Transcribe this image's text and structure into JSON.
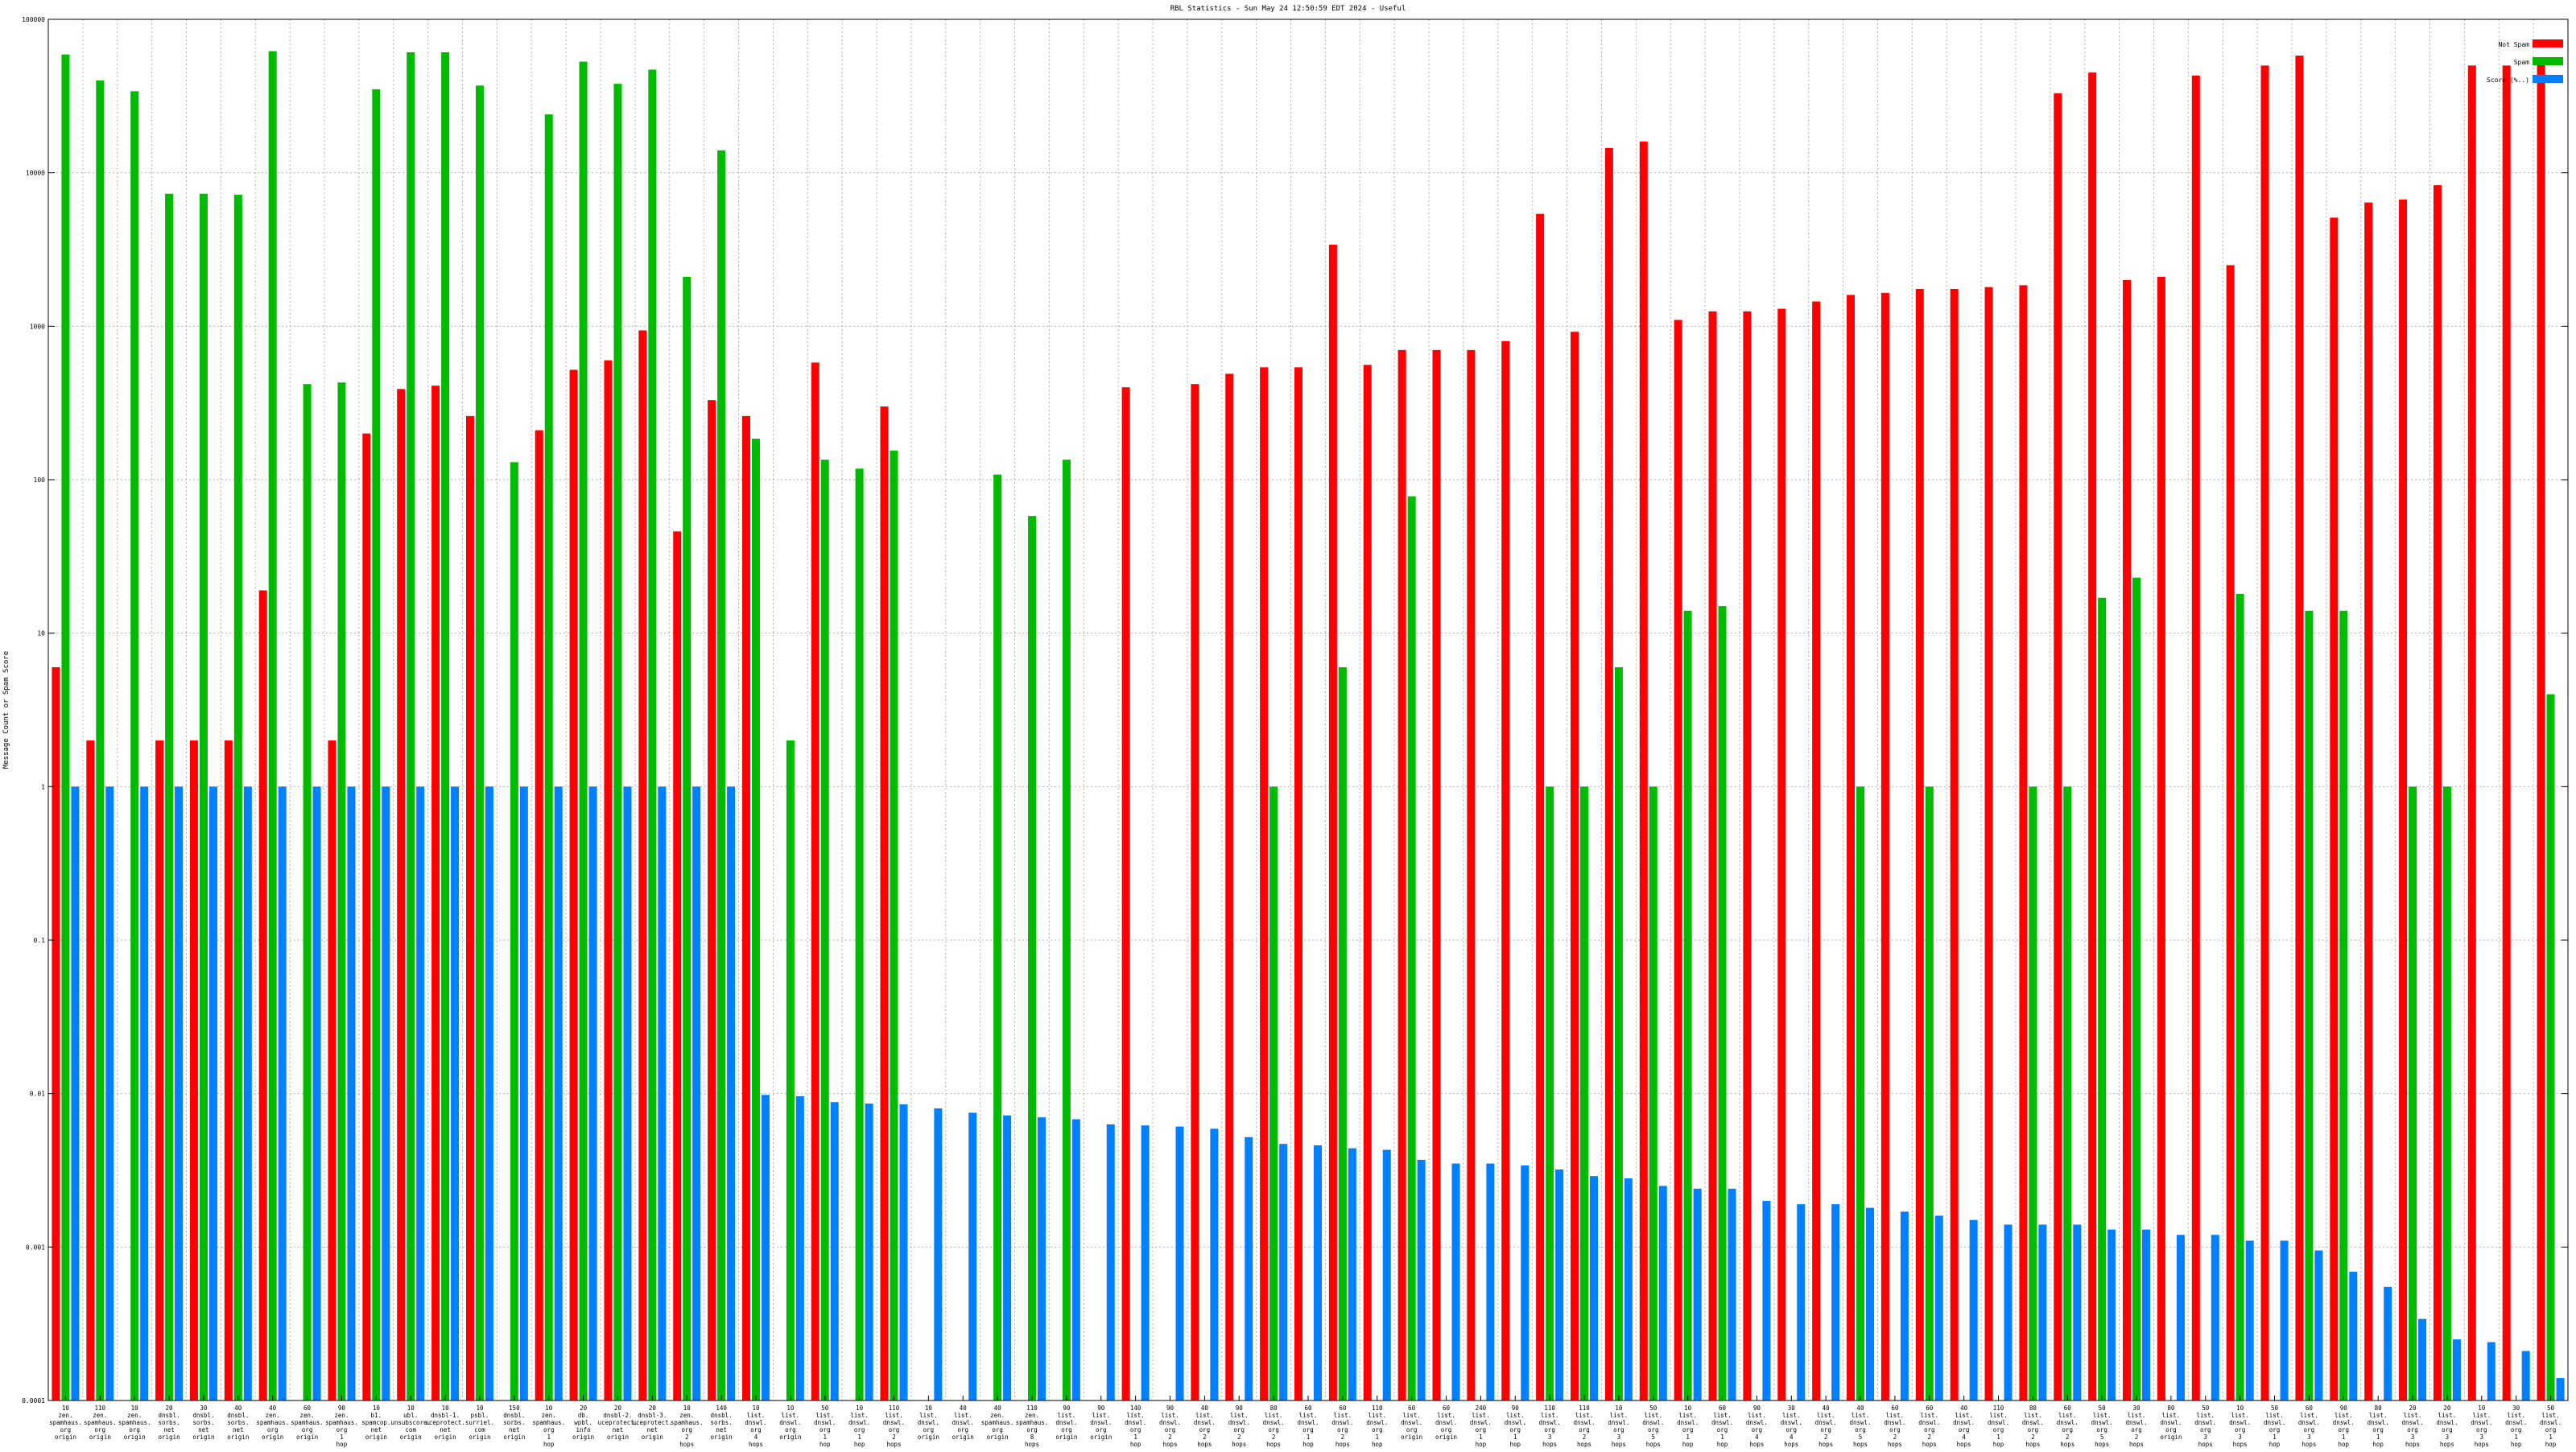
{
  "chart_data": {
    "type": "bar",
    "title": "RBL Statistics - Sun May 24 12:50:59 EDT 2024 - Useful",
    "xlabel": "",
    "ylabel": "Message Count or Spam Score",
    "yscale": "log",
    "ylim": [
      0.0001,
      100000
    ],
    "yticks": [
      "100000",
      "10000",
      "1000",
      "100",
      "10",
      "1",
      "0.1",
      "0.01",
      "0.001",
      "0.0001"
    ],
    "grid": true,
    "legend_position": "top-right",
    "colors": {
      "Not Spam": "#ff0000",
      "Spam": "#00bb00",
      "Score (%..)": "#0080ff"
    },
    "categories": [
      "10 zen. spamhaus. org origin",
      "110 zen. spamhaus. org origin",
      "10 zen. spamhaus. org origin",
      "20 dnsbl. sorbs. net origin",
      "30 dnsbl. sorbs. net origin",
      "40 dnsbl. sorbs. net origin",
      "40 zen. spamhaus. org origin",
      "60 zen. spamhaus. org origin",
      "90 zen. spamhaus. org 1 hop",
      "10 b1. spamcop. net origin",
      "10 ubl. unsubscore. com origin",
      "10 dnsbl-1. uceprotect. net origin",
      "10 psbl. surriel. com origin",
      "150 dnsbl. sorbs. net origin",
      "10 zen. spamhaus. org 1 hop",
      "20 db. wpbl. info origin",
      "20 dnsbl-2. uceprotect. net origin",
      "20 dnsbl-3. uceprotect. net origin",
      "10 zen. spamhaus. org 2 hops",
      "140 dnsbl. sorbs. net origin",
      "10 list. dnswl. org 4 hops",
      "10 list. dnswl. org origin",
      "50 list. dnswl. org 1 hop",
      "10 list. dnswl. org 1 hop",
      "110 list. dnswl. org 2 hops",
      "10 list. dnswl. org origin",
      "40 list. dnswl. org origin",
      "40 zen. spamhaus. org origin",
      "110 zen. spamhaus. org 8 hops",
      "90 list. dnswl. org origin",
      "90 list. dnswl. org origin",
      "140 list. dnswl. org 1 hop",
      "90 list. dnswl. org 2 hops",
      "40 list. dnswl. org 2 hops",
      "90 list. dnswl. org 2 hops",
      "80 list. dnswl. org 2 hops",
      "60 list. dnswl. org 1 hop",
      "60 list. dnswl. org 2 hops",
      "110 list. dnswl. org 1 hop",
      "60 list. dnswl. org origin",
      "60 list. dnswl. org origin",
      "240 list. dnswl. org 1 hop",
      "90 list. dnswl. org 1 hop",
      "110 list. dnswl. org 3 hops",
      "110 list. dnswl. org 2 hops",
      "10 list. dnswl. org 3 hops",
      "50 list. dnswl. org 5 hops",
      "10 list. dnswl. org 1 hop",
      "60 list. dnswl. org 1 hop",
      "90 list. dnswl. org 4 hops",
      "30 list. dnswl. org 4 hops",
      "40 list. dnswl. org 2 hops",
      "40 list. dnswl. org 5 hops",
      "60 list. dnswl. org 2 hops",
      "60 list. dnswl. org 2 hops",
      "40 list. dnswl. org 4 hops",
      "110 list. dnswl. org 1 hop",
      "80 list. dnswl. org 2 hops",
      "60 list. dnswl. org 2 hops",
      "50 list. dnswl. org 5 hops",
      "30 list. dnswl. org 2 hops",
      "80 list. dnswl. org origin",
      "50 list. dnswl. org 3 hops",
      "10 list. dnswl. org 3 hops",
      "50 list. dnswl. org 1 hop",
      "60 list. dnswl. org 3 hops",
      "90 list. dnswl. org 1 hop",
      "80 list. dnswl. org 1 hop",
      "20 list. dnswl. org 3 hops",
      "20 list. dnswl. org 3 hops",
      "10 list. dnswl. org 3 hops",
      "30 list. dnswl. org 1 hop",
      "50 list. dnswl. org 1 hop"
    ],
    "series": [
      {
        "name": "Not Spam",
        "values": [
          6,
          2,
          null,
          2,
          2,
          2,
          19,
          null,
          2,
          200,
          390,
          410,
          260,
          null,
          210,
          520,
          600,
          940,
          46,
          330,
          260,
          null,
          580,
          null,
          300,
          null,
          null,
          null,
          null,
          null,
          null,
          400,
          null,
          420,
          490,
          540,
          540,
          3400,
          560,
          700,
          700,
          700,
          800,
          5400,
          920,
          14500,
          16000,
          1100,
          1250,
          1250,
          1300,
          1450,
          1600,
          1650,
          1750,
          1750,
          1800,
          1850,
          33000,
          45000,
          2000,
          2100,
          43000,
          2500,
          50000,
          58000,
          5100,
          6400,
          6700,
          8300,
          50000,
          50000,
          53000
        ],
        "values_note_removed": true
      },
      {
        "name": "Spam",
        "values": [
          59000,
          40000,
          34000,
          7300,
          7300,
          7200,
          62000,
          420,
          430,
          35000,
          61000,
          61000,
          37000,
          130,
          24000,
          53000,
          38000,
          47000,
          2100,
          14000,
          185,
          2,
          135,
          118,
          155,
          null,
          null,
          108,
          58,
          135,
          null,
          null,
          null,
          null,
          null,
          1,
          null,
          6,
          null,
          78,
          null,
          null,
          null,
          1,
          1,
          6,
          1,
          14,
          15,
          null,
          null,
          null,
          1,
          null,
          1,
          null,
          null,
          1,
          1,
          17,
          23,
          null,
          null,
          18,
          null,
          14,
          14,
          null,
          1,
          1,
          null,
          null,
          4
        ],
        "values_note_removed": true
      },
      {
        "name": "Score (%..)",
        "values": [
          1,
          1,
          1,
          1,
          1,
          1,
          1,
          1,
          1,
          1,
          1,
          1,
          1,
          1,
          1,
          1,
          1,
          1,
          1,
          1,
          0.0098,
          0.0096,
          0.0088,
          0.0086,
          0.0085,
          0.008,
          0.0075,
          0.0072,
          0.007,
          0.0068,
          0.0063,
          0.0062,
          0.0061,
          0.0059,
          0.0052,
          0.0047,
          0.0046,
          0.0044,
          0.0043,
          0.0037,
          0.0035,
          0.0035,
          0.0034,
          0.0032,
          0.0029,
          0.0028,
          0.0025,
          0.0024,
          0.0024,
          0.002,
          0.0019,
          0.0019,
          0.0018,
          0.0017,
          0.0016,
          0.0015,
          0.0014,
          0.0014,
          0.0014,
          0.0013,
          0.0013,
          0.0012,
          0.0012,
          0.0011,
          0.0011,
          0.00095,
          0.00069,
          0.00055,
          0.00034,
          0.00025,
          0.00024,
          0.00021,
          0.00014
        ],
        "values_note_removed": true
      }
    ]
  }
}
